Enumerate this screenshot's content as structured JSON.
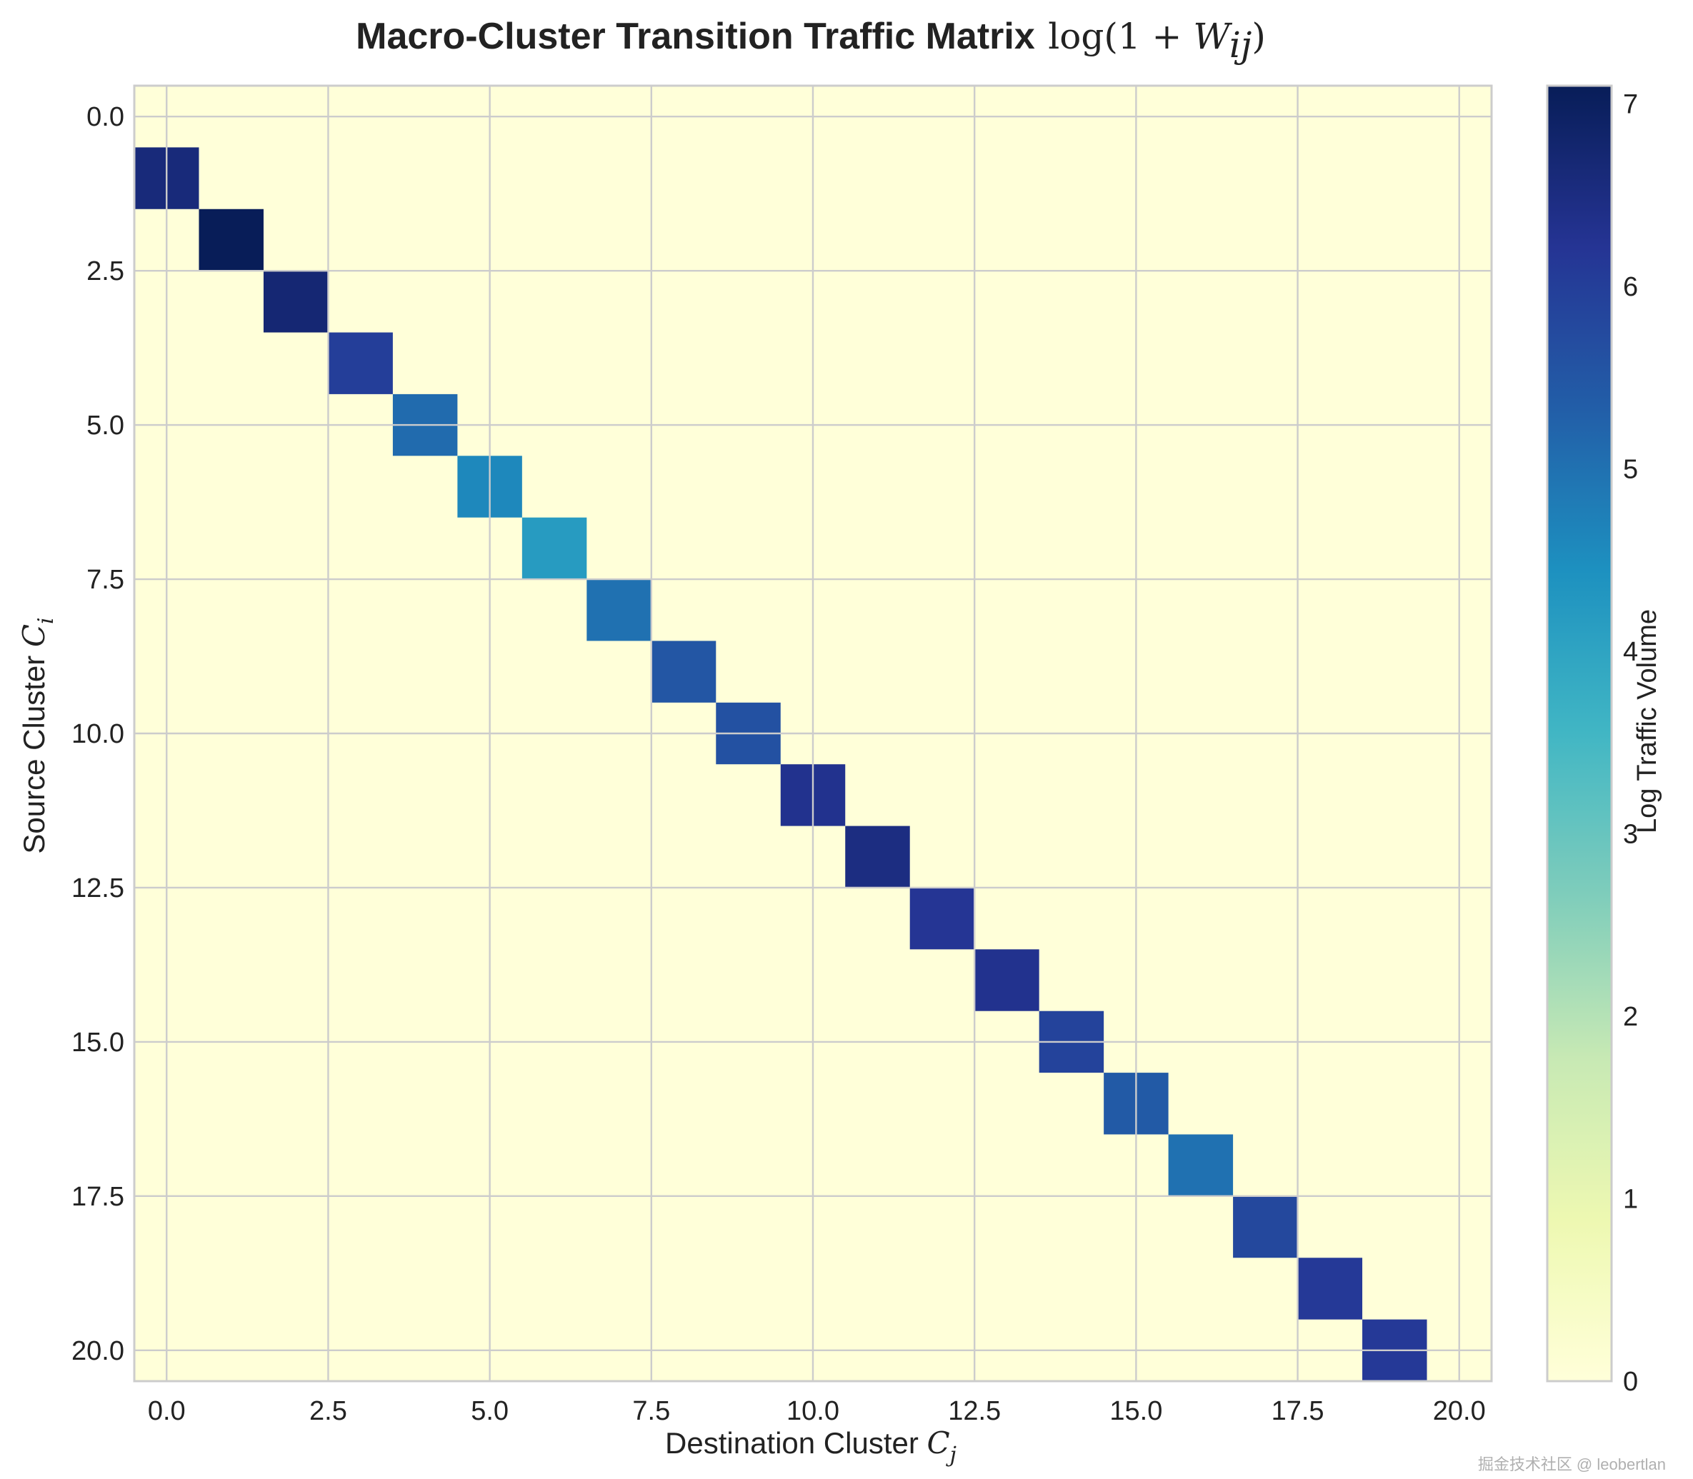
{
  "chart_data": {
    "type": "heatmap",
    "title": "Macro-Cluster Transition Traffic Matrix",
    "title_math": "log(1 + W_ij)",
    "xlabel": "Destination Cluster",
    "xlabel_math": "C",
    "xlabel_sub": "j",
    "ylabel": "Source Cluster",
    "ylabel_math": "C",
    "ylabel_sub": "i",
    "xlim": [
      -0.5,
      20.5
    ],
    "ylim": [
      20.5,
      -0.5
    ],
    "xticks": [
      "0.0",
      "2.5",
      "5.0",
      "7.5",
      "10.0",
      "12.5",
      "15.0",
      "17.5",
      "20.0"
    ],
    "xtick_values": [
      0,
      2.5,
      5,
      7.5,
      10,
      12.5,
      15,
      17.5,
      20
    ],
    "yticks": [
      "0.0",
      "2.5",
      "5.0",
      "7.5",
      "10.0",
      "12.5",
      "15.0",
      "17.5",
      "20.0"
    ],
    "ytick_values": [
      0,
      2.5,
      5,
      7.5,
      10,
      12.5,
      15,
      17.5,
      20
    ],
    "grid": true,
    "colormap": "YlGnBu",
    "background_value": 0,
    "colorbar": {
      "label": "Log Traffic Volume",
      "range": [
        0,
        7.1
      ],
      "ticks": [
        "0",
        "1",
        "2",
        "3",
        "4",
        "5",
        "6",
        "7"
      ],
      "tick_values": [
        0,
        1,
        2,
        3,
        4,
        5,
        6,
        7
      ]
    },
    "cells": [
      {
        "row": 1,
        "col": 0,
        "value": 6.6
      },
      {
        "row": 2,
        "col": 1,
        "value": 7.1
      },
      {
        "row": 3,
        "col": 2,
        "value": 6.7
      },
      {
        "row": 4,
        "col": 3,
        "value": 6.0
      },
      {
        "row": 5,
        "col": 4,
        "value": 5.1
      },
      {
        "row": 6,
        "col": 5,
        "value": 4.6
      },
      {
        "row": 7,
        "col": 6,
        "value": 4.2
      },
      {
        "row": 8,
        "col": 7,
        "value": 5.0
      },
      {
        "row": 9,
        "col": 8,
        "value": 5.5
      },
      {
        "row": 10,
        "col": 9,
        "value": 5.6
      },
      {
        "row": 11,
        "col": 10,
        "value": 6.3
      },
      {
        "row": 12,
        "col": 11,
        "value": 6.5
      },
      {
        "row": 13,
        "col": 12,
        "value": 6.2
      },
      {
        "row": 14,
        "col": 13,
        "value": 6.3
      },
      {
        "row": 15,
        "col": 14,
        "value": 5.9
      },
      {
        "row": 16,
        "col": 15,
        "value": 5.4
      },
      {
        "row": 17,
        "col": 16,
        "value": 5.0
      },
      {
        "row": 18,
        "col": 17,
        "value": 5.8
      },
      {
        "row": 19,
        "col": 18,
        "value": 6.1
      },
      {
        "row": 20,
        "col": 19,
        "value": 6.1
      }
    ]
  },
  "watermark": "掘金技术社区 @ leobertlan"
}
